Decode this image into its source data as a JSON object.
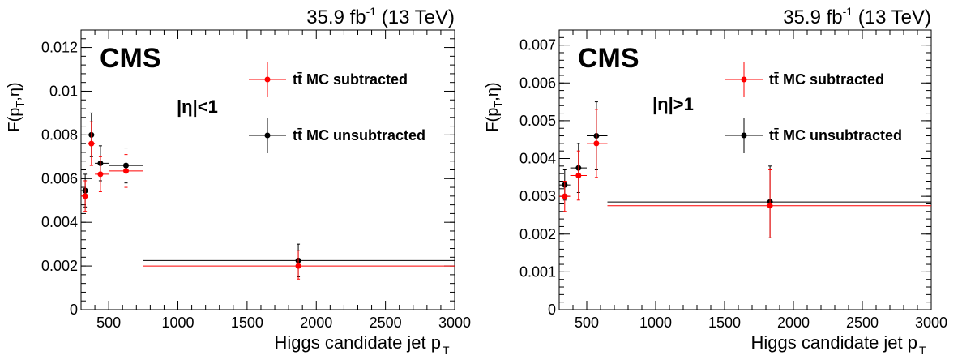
{
  "chart_data": [
    {
      "type": "scatter",
      "lumi_label": "35.9 fb",
      "lumi_exp": "-1",
      "energy_label": " (13 TeV)",
      "experiment": "CMS",
      "region_label": "|η|<1",
      "xlabel": "Higgs candidate jet p",
      "xlabel_sub": "T",
      "ylabel": "F(p",
      "ylabel_sub": "T",
      "ylabel_tail": ",η)",
      "xlim": [
        300,
        3000
      ],
      "ylim": [
        0,
        0.0128
      ],
      "xticks": [
        500,
        1000,
        1500,
        2000,
        2500,
        3000
      ],
      "yticks": [
        0,
        0.002,
        0.004,
        0.006,
        0.008,
        0.01,
        0.012
      ],
      "ytick_labels": [
        "0",
        "0.002",
        "0.004",
        "0.006",
        "0.008",
        "0.01",
        "0.012"
      ],
      "legend_position": "top-right",
      "series": [
        {
          "name": "tt̄ MC subtracted",
          "color": "#ff0000",
          "points": [
            {
              "x": 330,
              "xlo": 300,
              "xhi": 350,
              "y": 0.0052,
              "ylo": 0.0045,
              "yhi": 0.0059
            },
            {
              "x": 375,
              "xlo": 350,
              "xhi": 400,
              "y": 0.0076,
              "ylo": 0.0066,
              "yhi": 0.0086
            },
            {
              "x": 440,
              "xlo": 400,
              "xhi": 500,
              "y": 0.0062,
              "ylo": 0.0054,
              "yhi": 0.007
            },
            {
              "x": 625,
              "xlo": 500,
              "xhi": 750,
              "y": 0.00635,
              "ylo": 0.0056,
              "yhi": 0.0071
            },
            {
              "x": 1870,
              "xlo": 750,
              "xhi": 3000,
              "y": 0.002,
              "ylo": 0.0014,
              "yhi": 0.0027
            }
          ]
        },
        {
          "name": "tt̄ MC unsubtracted",
          "color": "#000000",
          "points": [
            {
              "x": 330,
              "xlo": 300,
              "xhi": 350,
              "y": 0.00545,
              "ylo": 0.0047,
              "yhi": 0.0062
            },
            {
              "x": 375,
              "xlo": 350,
              "xhi": 400,
              "y": 0.008,
              "ylo": 0.007,
              "yhi": 0.009
            },
            {
              "x": 440,
              "xlo": 400,
              "xhi": 500,
              "y": 0.0067,
              "ylo": 0.0059,
              "yhi": 0.0075
            },
            {
              "x": 625,
              "xlo": 500,
              "xhi": 750,
              "y": 0.0066,
              "ylo": 0.0058,
              "yhi": 0.0074
            },
            {
              "x": 1870,
              "xlo": 750,
              "xhi": 3000,
              "y": 0.00225,
              "ylo": 0.0015,
              "yhi": 0.003
            }
          ]
        }
      ]
    },
    {
      "type": "scatter",
      "lumi_label": "35.9 fb",
      "lumi_exp": "-1",
      "energy_label": " (13 TeV)",
      "experiment": "CMS",
      "region_label": "|η|>1",
      "xlabel": "Higgs candidate jet p",
      "xlabel_sub": "T",
      "ylabel": "F(p",
      "ylabel_sub": "T",
      "ylabel_tail": ",η)",
      "xlim": [
        300,
        3000
      ],
      "ylim": [
        0,
        0.0074
      ],
      "xticks": [
        500,
        1000,
        1500,
        2000,
        2500,
        3000
      ],
      "yticks": [
        0,
        0.001,
        0.002,
        0.003,
        0.004,
        0.005,
        0.006,
        0.007
      ],
      "ytick_labels": [
        "0",
        "0.001",
        "0.002",
        "0.003",
        "0.004",
        "0.005",
        "0.006",
        "0.007"
      ],
      "legend_position": "top-right",
      "series": [
        {
          "name": "tt̄ MC subtracted",
          "color": "#ff0000",
          "points": [
            {
              "x": 340,
              "xlo": 300,
              "xhi": 380,
              "y": 0.003,
              "ylo": 0.0026,
              "yhi": 0.0034
            },
            {
              "x": 440,
              "xlo": 380,
              "xhi": 500,
              "y": 0.00355,
              "ylo": 0.0029,
              "yhi": 0.0042
            },
            {
              "x": 570,
              "xlo": 500,
              "xhi": 650,
              "y": 0.0044,
              "ylo": 0.0035,
              "yhi": 0.0053
            },
            {
              "x": 1830,
              "xlo": 650,
              "xhi": 3000,
              "y": 0.00275,
              "ylo": 0.0019,
              "yhi": 0.0037
            }
          ]
        },
        {
          "name": "tt̄ MC unsubtracted",
          "color": "#000000",
          "points": [
            {
              "x": 340,
              "xlo": 300,
              "xhi": 380,
              "y": 0.0033,
              "ylo": 0.0029,
              "yhi": 0.0037
            },
            {
              "x": 440,
              "xlo": 380,
              "xhi": 500,
              "y": 0.00375,
              "ylo": 0.0031,
              "yhi": 0.0044
            },
            {
              "x": 570,
              "xlo": 500,
              "xhi": 650,
              "y": 0.0046,
              "ylo": 0.0037,
              "yhi": 0.0055
            },
            {
              "x": 1830,
              "xlo": 650,
              "xhi": 3000,
              "y": 0.00285,
              "ylo": 0.0019,
              "yhi": 0.0038
            }
          ]
        }
      ]
    }
  ]
}
